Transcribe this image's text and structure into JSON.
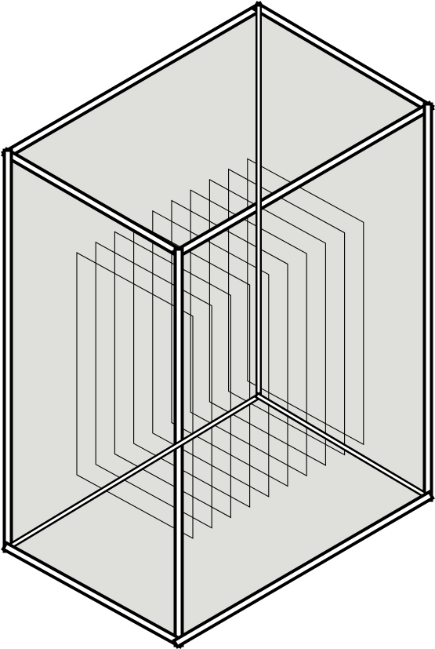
{
  "figure": {
    "box_fill_color": "#dfdfdb",
    "frame_color": "#000000",
    "frame_inner_color": "#ffffff",
    "plane_line_color": "#000000",
    "plane_count": 10
  }
}
